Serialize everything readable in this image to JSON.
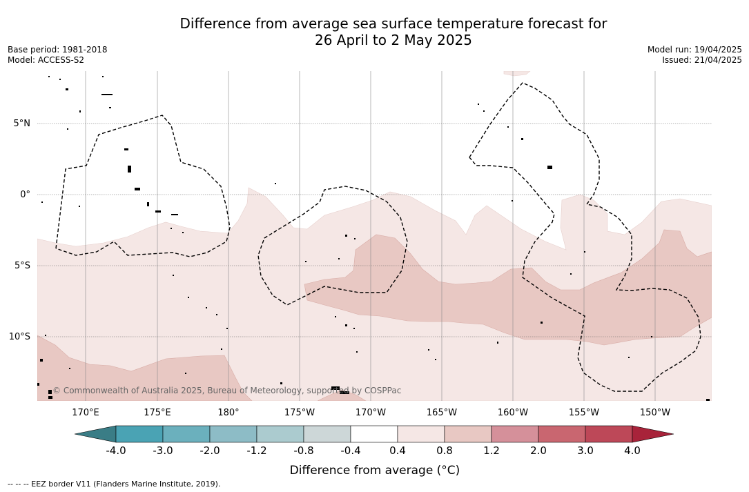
{
  "title": {
    "line1": "Difference from average sea surface temperature forecast for",
    "line2": "26 April to 2 May 2025"
  },
  "meta_left": {
    "base_period": "Base period: 1981-2018",
    "model": "Model: ACCESS-S2"
  },
  "meta_right": {
    "model_run": "Model run: 19/04/2025",
    "issued": "Issued: 21/04/2025"
  },
  "map": {
    "longitude_labels": [
      "170°E",
      "175°E",
      "180°",
      "175°W",
      "170°W",
      "165°W",
      "160°W",
      "155°W",
      "150°W"
    ],
    "latitude_labels": [
      "5°N",
      "0°",
      "5°S",
      "10°S"
    ],
    "credit": "© Commonwealth of Australia 2025, Bureau of Meteorology, supported by COSPPac"
  },
  "colorbar": {
    "tick_labels": [
      "-4.0",
      "-3.0",
      "-2.0",
      "-1.2",
      "-0.8",
      "-0.4",
      "0.4",
      "0.8",
      "1.2",
      "2.0",
      "3.0",
      "4.0"
    ],
    "colors": [
      "#3a7d86",
      "#4aa3b4",
      "#6bb0bd",
      "#8dbcc6",
      "#abcbcf",
      "#cdd7d8",
      "#ffffff",
      "#f5e7e5",
      "#e8c8c3",
      "#d5909a",
      "#c96670",
      "#bd4858",
      "#a8233a"
    ],
    "label": "Difference from average (°C)"
  },
  "footnote": "--  --  -- EEZ border V11 (Flanders Marine Institute, 2019)."
}
